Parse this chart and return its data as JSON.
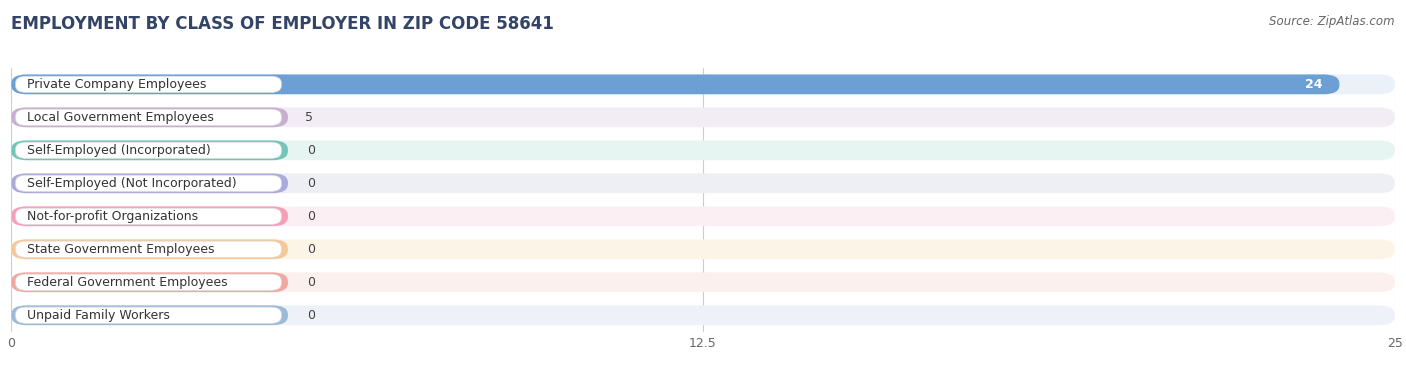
{
  "title": "EMPLOYMENT BY CLASS OF EMPLOYER IN ZIP CODE 58641",
  "source": "Source: ZipAtlas.com",
  "categories": [
    "Private Company Employees",
    "Local Government Employees",
    "Self-Employed (Incorporated)",
    "Self-Employed (Not Incorporated)",
    "Not-for-profit Organizations",
    "State Government Employees",
    "Federal Government Employees",
    "Unpaid Family Workers"
  ],
  "values": [
    24,
    5,
    0,
    0,
    0,
    0,
    0,
    0
  ],
  "bar_colors": [
    "#6CA0D4",
    "#C8AED0",
    "#72C5B8",
    "#AAAADD",
    "#F5A0B8",
    "#F5C898",
    "#F0A8A0",
    "#9BBAD8"
  ],
  "bar_bg_colors": [
    "#EAF1F8",
    "#F2EDF5",
    "#E6F5F2",
    "#EEEEF5",
    "#FCEFF3",
    "#FDF4E8",
    "#FCF0EE",
    "#EEF2F8"
  ],
  "xlim": [
    0,
    25
  ],
  "xticks": [
    0,
    12.5,
    25
  ],
  "xtick_labels": [
    "0",
    "12.5",
    "25"
  ],
  "background_color": "#ffffff",
  "grid_color": "#cccccc",
  "title_fontsize": 12,
  "label_fontsize": 9,
  "value_fontsize": 9,
  "source_fontsize": 8.5,
  "tick_fontsize": 9
}
